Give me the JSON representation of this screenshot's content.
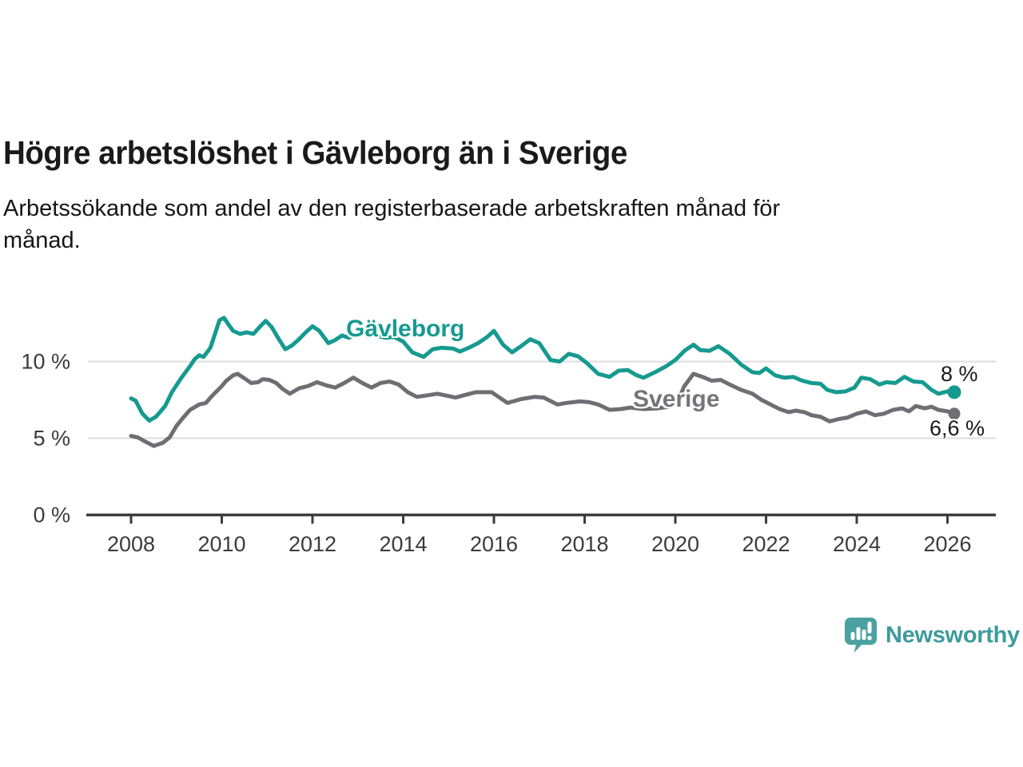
{
  "title": "Högre arbetslöshet i Gävleborg än i Sverige",
  "subtitle_lines": [
    "Arbetssökande som andel av den registerbaserade arbetskraften månad för",
    "månad."
  ],
  "branding": {
    "name": "Newsworthy",
    "icon": "speech-bubble-bar-chart-icon",
    "brand_color": "#4ba1a1",
    "text_color": "#3d9b9b"
  },
  "colors": {
    "gavleborg_line": "#169a8f",
    "sverige_line": "#716d74",
    "gridline": "#dddddd",
    "axis": "#3c3c3c",
    "tick_text": "#3b3b3b",
    "annotation_text": "#1b1b1b"
  },
  "chart_data": {
    "type": "line",
    "title": "Högre arbetslöshet i Gävleborg än i Sverige",
    "subtitle": "Arbetssökande som andel av den registerbaserade arbetskraften månad för månad.",
    "unit": "percent of registered labour force",
    "x_range": [
      2007.9,
      2026.6
    ],
    "ylim": [
      0,
      13.8
    ],
    "grid": true,
    "x_axis": {
      "ticks": [
        2008,
        2010,
        2012,
        2014,
        2016,
        2018,
        2020,
        2022,
        2024,
        2026
      ]
    },
    "y_axis": {
      "tick_values": [
        0,
        5,
        10
      ],
      "tick_labels": [
        "0 %",
        "5 %",
        "10 %"
      ]
    },
    "series": [
      {
        "name": "Gävleborg",
        "color": "#169a8f",
        "end_label": "8 %",
        "end_value": 8.0,
        "points": [
          [
            2008.0,
            7.6
          ],
          [
            2008.1,
            7.45
          ],
          [
            2008.25,
            6.6
          ],
          [
            2008.4,
            6.15
          ],
          [
            2008.55,
            6.4
          ],
          [
            2008.75,
            7.1
          ],
          [
            2008.9,
            8.0
          ],
          [
            2009.1,
            8.9
          ],
          [
            2009.3,
            9.7
          ],
          [
            2009.4,
            10.15
          ],
          [
            2009.5,
            10.4
          ],
          [
            2009.6,
            10.3
          ],
          [
            2009.75,
            10.9
          ],
          [
            2009.85,
            11.8
          ],
          [
            2009.95,
            12.7
          ],
          [
            2010.05,
            12.85
          ],
          [
            2010.15,
            12.4
          ],
          [
            2010.25,
            12.0
          ],
          [
            2010.4,
            11.8
          ],
          [
            2010.55,
            11.9
          ],
          [
            2010.7,
            11.8
          ],
          [
            2010.85,
            12.3
          ],
          [
            2010.97,
            12.65
          ],
          [
            2011.1,
            12.25
          ],
          [
            2011.25,
            11.5
          ],
          [
            2011.4,
            10.8
          ],
          [
            2011.55,
            11.05
          ],
          [
            2011.7,
            11.45
          ],
          [
            2011.85,
            11.9
          ],
          [
            2012.0,
            12.3
          ],
          [
            2012.15,
            12.0
          ],
          [
            2012.35,
            11.2
          ],
          [
            2012.5,
            11.4
          ],
          [
            2012.65,
            11.7
          ],
          [
            2012.8,
            11.55
          ],
          [
            2013.0,
            11.85
          ],
          [
            2013.2,
            12.0
          ],
          [
            2013.4,
            11.7
          ],
          [
            2013.6,
            11.55
          ],
          [
            2013.8,
            11.6
          ],
          [
            2014.0,
            11.3
          ],
          [
            2014.2,
            10.6
          ],
          [
            2014.45,
            10.3
          ],
          [
            2014.65,
            10.8
          ],
          [
            2014.85,
            10.9
          ],
          [
            2015.1,
            10.85
          ],
          [
            2015.25,
            10.65
          ],
          [
            2015.45,
            10.9
          ],
          [
            2015.65,
            11.2
          ],
          [
            2015.85,
            11.6
          ],
          [
            2016.0,
            12.0
          ],
          [
            2016.2,
            11.1
          ],
          [
            2016.4,
            10.6
          ],
          [
            2016.6,
            11.0
          ],
          [
            2016.8,
            11.45
          ],
          [
            2017.0,
            11.2
          ],
          [
            2017.25,
            10.1
          ],
          [
            2017.45,
            10.0
          ],
          [
            2017.65,
            10.5
          ],
          [
            2017.85,
            10.35
          ],
          [
            2018.05,
            9.9
          ],
          [
            2018.3,
            9.2
          ],
          [
            2018.55,
            9.0
          ],
          [
            2018.75,
            9.4
          ],
          [
            2018.95,
            9.45
          ],
          [
            2019.15,
            9.1
          ],
          [
            2019.3,
            8.95
          ],
          [
            2019.55,
            9.3
          ],
          [
            2019.8,
            9.7
          ],
          [
            2020.0,
            10.1
          ],
          [
            2020.2,
            10.7
          ],
          [
            2020.4,
            11.1
          ],
          [
            2020.55,
            10.75
          ],
          [
            2020.75,
            10.7
          ],
          [
            2020.95,
            11.0
          ],
          [
            2021.2,
            10.5
          ],
          [
            2021.45,
            9.8
          ],
          [
            2021.7,
            9.3
          ],
          [
            2021.85,
            9.25
          ],
          [
            2022.0,
            9.55
          ],
          [
            2022.2,
            9.1
          ],
          [
            2022.4,
            8.95
          ],
          [
            2022.6,
            9.0
          ],
          [
            2022.8,
            8.75
          ],
          [
            2023.0,
            8.6
          ],
          [
            2023.2,
            8.55
          ],
          [
            2023.35,
            8.15
          ],
          [
            2023.55,
            8.0
          ],
          [
            2023.75,
            8.05
          ],
          [
            2023.95,
            8.3
          ],
          [
            2024.1,
            8.95
          ],
          [
            2024.3,
            8.85
          ],
          [
            2024.5,
            8.5
          ],
          [
            2024.65,
            8.65
          ],
          [
            2024.85,
            8.6
          ],
          [
            2025.05,
            9.0
          ],
          [
            2025.25,
            8.7
          ],
          [
            2025.45,
            8.65
          ],
          [
            2025.65,
            8.15
          ],
          [
            2025.8,
            7.9
          ],
          [
            2026.0,
            8.05
          ],
          [
            2026.15,
            8.0
          ]
        ]
      },
      {
        "name": "Sverige",
        "color": "#716d74",
        "end_label": "6,6 %",
        "end_value": 6.6,
        "points": [
          [
            2008.0,
            5.15
          ],
          [
            2008.15,
            5.05
          ],
          [
            2008.3,
            4.8
          ],
          [
            2008.5,
            4.5
          ],
          [
            2008.7,
            4.7
          ],
          [
            2008.85,
            5.05
          ],
          [
            2009.0,
            5.8
          ],
          [
            2009.15,
            6.35
          ],
          [
            2009.3,
            6.85
          ],
          [
            2009.5,
            7.2
          ],
          [
            2009.65,
            7.3
          ],
          [
            2009.8,
            7.8
          ],
          [
            2010.0,
            8.4
          ],
          [
            2010.1,
            8.75
          ],
          [
            2010.25,
            9.1
          ],
          [
            2010.35,
            9.2
          ],
          [
            2010.5,
            8.9
          ],
          [
            2010.65,
            8.6
          ],
          [
            2010.8,
            8.65
          ],
          [
            2010.9,
            8.85
          ],
          [
            2011.05,
            8.8
          ],
          [
            2011.2,
            8.6
          ],
          [
            2011.35,
            8.2
          ],
          [
            2011.5,
            7.9
          ],
          [
            2011.7,
            8.25
          ],
          [
            2011.9,
            8.4
          ],
          [
            2012.1,
            8.65
          ],
          [
            2012.3,
            8.45
          ],
          [
            2012.5,
            8.3
          ],
          [
            2012.7,
            8.6
          ],
          [
            2012.9,
            8.95
          ],
          [
            2013.1,
            8.6
          ],
          [
            2013.3,
            8.3
          ],
          [
            2013.5,
            8.6
          ],
          [
            2013.7,
            8.7
          ],
          [
            2013.9,
            8.5
          ],
          [
            2014.1,
            8.0
          ],
          [
            2014.3,
            7.7
          ],
          [
            2014.55,
            7.8
          ],
          [
            2014.75,
            7.9
          ],
          [
            2015.0,
            7.75
          ],
          [
            2015.15,
            7.65
          ],
          [
            2015.4,
            7.85
          ],
          [
            2015.6,
            8.0
          ],
          [
            2015.95,
            8.0
          ],
          [
            2016.3,
            7.3
          ],
          [
            2016.6,
            7.55
          ],
          [
            2016.9,
            7.7
          ],
          [
            2017.1,
            7.65
          ],
          [
            2017.4,
            7.2
          ],
          [
            2017.6,
            7.3
          ],
          [
            2017.9,
            7.4
          ],
          [
            2018.1,
            7.35
          ],
          [
            2018.3,
            7.2
          ],
          [
            2018.55,
            6.85
          ],
          [
            2018.8,
            6.9
          ],
          [
            2019.0,
            7.0
          ],
          [
            2019.3,
            6.9
          ],
          [
            2019.6,
            6.95
          ],
          [
            2019.85,
            7.05
          ],
          [
            2020.05,
            7.4
          ],
          [
            2020.2,
            8.4
          ],
          [
            2020.4,
            9.2
          ],
          [
            2020.6,
            9.0
          ],
          [
            2020.8,
            8.75
          ],
          [
            2021.0,
            8.8
          ],
          [
            2021.2,
            8.5
          ],
          [
            2021.45,
            8.15
          ],
          [
            2021.7,
            7.9
          ],
          [
            2021.9,
            7.5
          ],
          [
            2022.1,
            7.2
          ],
          [
            2022.3,
            6.9
          ],
          [
            2022.5,
            6.7
          ],
          [
            2022.65,
            6.8
          ],
          [
            2022.85,
            6.7
          ],
          [
            2023.0,
            6.5
          ],
          [
            2023.2,
            6.4
          ],
          [
            2023.4,
            6.1
          ],
          [
            2023.6,
            6.25
          ],
          [
            2023.8,
            6.35
          ],
          [
            2024.0,
            6.6
          ],
          [
            2024.2,
            6.75
          ],
          [
            2024.4,
            6.5
          ],
          [
            2024.6,
            6.6
          ],
          [
            2024.8,
            6.85
          ],
          [
            2025.0,
            6.95
          ],
          [
            2025.15,
            6.75
          ],
          [
            2025.3,
            7.1
          ],
          [
            2025.5,
            6.95
          ],
          [
            2025.65,
            7.05
          ],
          [
            2025.8,
            6.85
          ],
          [
            2026.0,
            6.75
          ],
          [
            2026.15,
            6.6
          ]
        ]
      }
    ]
  }
}
